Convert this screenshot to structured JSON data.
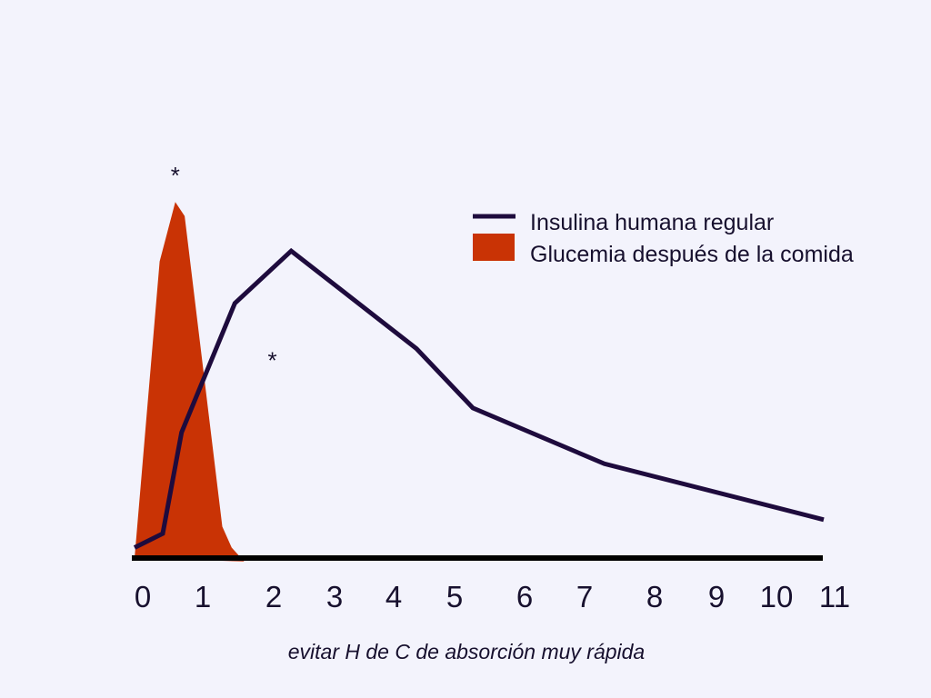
{
  "colors": {
    "background": "#f3f3fc",
    "insulina": "#1e0b3d",
    "glucemia": "#c93305",
    "axis": "#000000",
    "text": "#17102e"
  },
  "chart_data": {
    "type": "line",
    "xlabel": "",
    "ylabel": "",
    "x_ticks": [
      "0",
      "1",
      "2",
      "3",
      "4",
      "5",
      "6",
      "7",
      "8",
      "9",
      "10",
      "11"
    ],
    "xlim": [
      0,
      11
    ],
    "ylim": [
      0,
      100
    ],
    "grid": false,
    "legend_position": "top-right",
    "series": [
      {
        "name": "Insulina humana regular",
        "style": "line",
        "color": "#1e0b3d",
        "points": [
          [
            0,
            3
          ],
          [
            0.45,
            7
          ],
          [
            0.75,
            36
          ],
          [
            1.6,
            73
          ],
          [
            2.5,
            88
          ],
          [
            4.5,
            60
          ],
          [
            5.4,
            43
          ],
          [
            7.5,
            27
          ],
          [
            11,
            11
          ]
        ]
      },
      {
        "name": "Glucemia después de la comida",
        "style": "area",
        "color": "#c93305",
        "points": [
          [
            0,
            0
          ],
          [
            0.4,
            85
          ],
          [
            0.65,
            102
          ],
          [
            0.8,
            98
          ],
          [
            1.4,
            9
          ],
          [
            1.55,
            3
          ],
          [
            1.75,
            -1
          ]
        ]
      }
    ],
    "annotations": [
      {
        "text": "*",
        "x": 0.65,
        "y": 111
      },
      {
        "text": "*",
        "x": 2.2,
        "y": 58
      }
    ],
    "caption": "evitar H de C de absorción muy rápida"
  }
}
